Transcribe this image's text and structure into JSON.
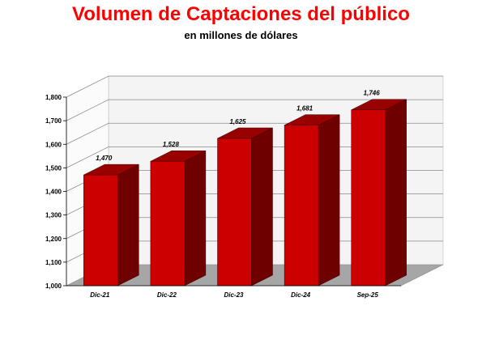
{
  "chart_data": {
    "type": "bar",
    "title": "Volumen de Captaciones del público",
    "subtitle": "en millones de dólares",
    "categories": [
      "Dic-21",
      "Dic-22",
      "Dic-23",
      "Dic-24",
      "Sep-25"
    ],
    "values": [
      1470,
      1528,
      1625,
      1681,
      1746
    ],
    "data_labels": [
      "1,470",
      "1,528",
      "1,625",
      "1,681",
      "1,746"
    ],
    "ylim": [
      1000,
      1800
    ],
    "yticks": [
      1000,
      1100,
      1200,
      1300,
      1400,
      1500,
      1600,
      1700,
      1800
    ],
    "ytick_labels": [
      "1,000",
      "1,100",
      "1,200",
      "1,300",
      "1,400",
      "1,500",
      "1,600",
      "1,700",
      "1,800"
    ],
    "grid": true,
    "colors": {
      "title": "#ff0000",
      "bar_front": "#cc0000",
      "bar_side": "#6e0000",
      "bar_top": "#990000",
      "wall": "#f4f4f4",
      "floor": "#a6a6a6"
    }
  }
}
